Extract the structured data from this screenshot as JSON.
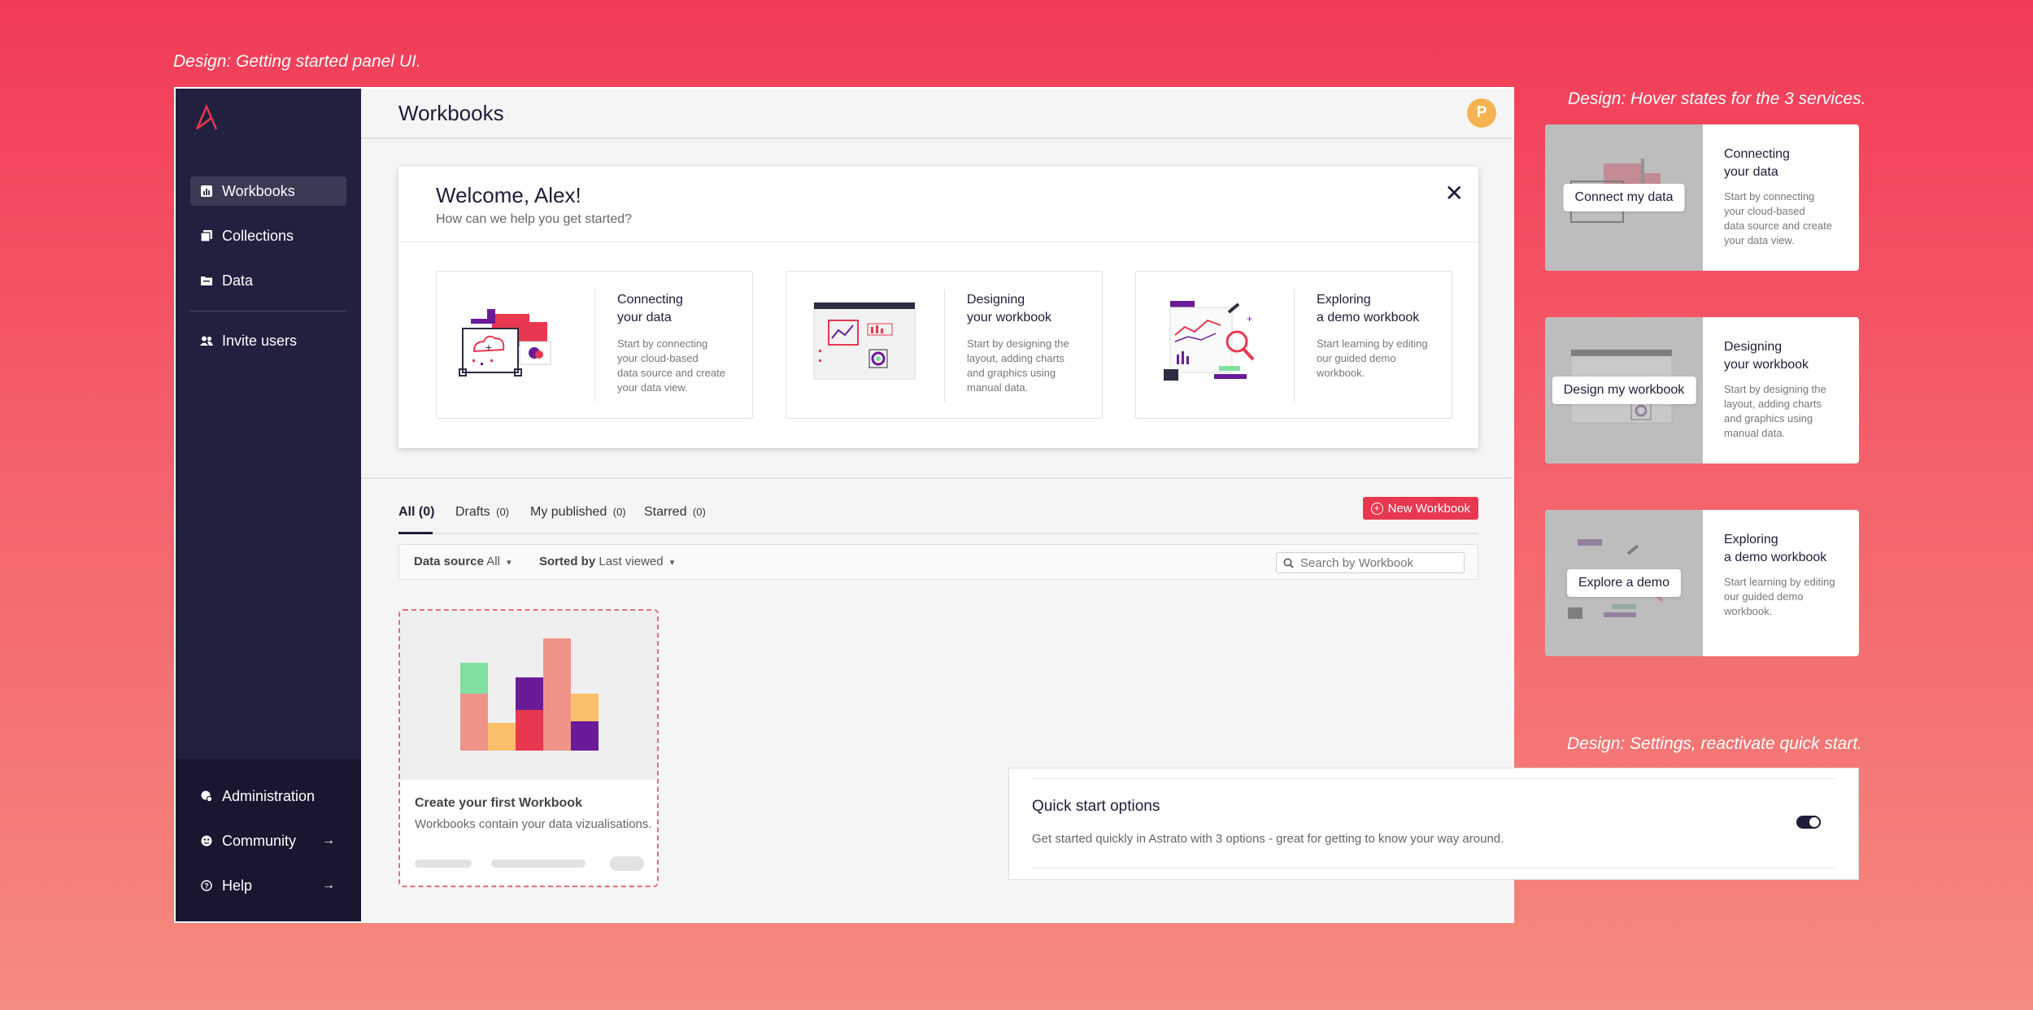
{
  "captions": {
    "main": "Design: Getting started panel UI.",
    "hover": "Design: Hover states for the 3 services.",
    "settings": "Design: Settings, reactivate quick start."
  },
  "sidebar": {
    "items": [
      {
        "label": "Workbooks",
        "icon": "bar-chart-icon",
        "active": true
      },
      {
        "label": "Collections",
        "icon": "collections-icon"
      },
      {
        "label": "Data",
        "icon": "folder-icon"
      },
      {
        "label": "Invite users",
        "icon": "users-icon"
      }
    ],
    "bottom": [
      {
        "label": "Administration",
        "icon": "admin-icon"
      },
      {
        "label": "Community",
        "icon": "community-icon",
        "arrow": "→"
      },
      {
        "label": "Help",
        "icon": "help-icon",
        "arrow": "→"
      }
    ]
  },
  "header": {
    "title": "Workbooks",
    "avatar_initial": "P"
  },
  "welcome": {
    "title": "Welcome, Alex!",
    "subtitle": "How can we help you get started?",
    "close": "✕",
    "services": [
      {
        "title": "Connecting\nyour data",
        "desc": "Start by connecting\nyour cloud-based\ndata source and create\nyour data view."
      },
      {
        "title": "Designing\nyour workbook",
        "desc": "Start by designing the\nlayout, adding charts\nand graphics using\nmanual data."
      },
      {
        "title": "Exploring\na demo workbook",
        "desc": "Start learning by editing\nour guided demo\nworkbook."
      }
    ]
  },
  "tabs": [
    {
      "label": "All",
      "count": "(0)",
      "active": true
    },
    {
      "label": "Drafts",
      "count": "(0)"
    },
    {
      "label": "My published",
      "count": "(0)"
    },
    {
      "label": "Starred",
      "count": "(0)"
    }
  ],
  "new_workbook": {
    "label": "New Workbook",
    "plus": "+"
  },
  "filters": {
    "data_source_label": "Data source",
    "data_source_value": "All",
    "sorted_label": "Sorted by",
    "sorted_value": "Last viewed",
    "caret": "▾",
    "search_placeholder": "Search by Workbook"
  },
  "create_card": {
    "title": "Create your first Workbook",
    "subtitle": "Workbooks contain your data vizualisations."
  },
  "hover_cards": [
    {
      "button": "Connect my data",
      "title": "Connecting\nyour data",
      "desc": "Start by connecting\nyour cloud-based\ndata source and create\nyour data view."
    },
    {
      "button": "Design my workbook",
      "title": "Designing\nyour workbook",
      "desc": "Start by designing the\nlayout, adding charts\nand graphics using\nmanual data."
    },
    {
      "button": "Explore a demo",
      "title": "Exploring\na demo workbook",
      "desc": "Start learning by editing\nour guided demo\nworkbook."
    }
  ],
  "settings": {
    "title": "Quick start options",
    "desc": "Get started quickly in Astrato with 3 options - great for getting to know your way around.",
    "toggle_on": true
  },
  "colors": {
    "brand_red": "#e8384f",
    "sidebar_bg": "#21203f",
    "avatar": "#f6b352",
    "purple": "#6a1b9a",
    "salmon": "#f0948a",
    "green": "#7fe0a0",
    "yellow": "#fbbf6a"
  }
}
